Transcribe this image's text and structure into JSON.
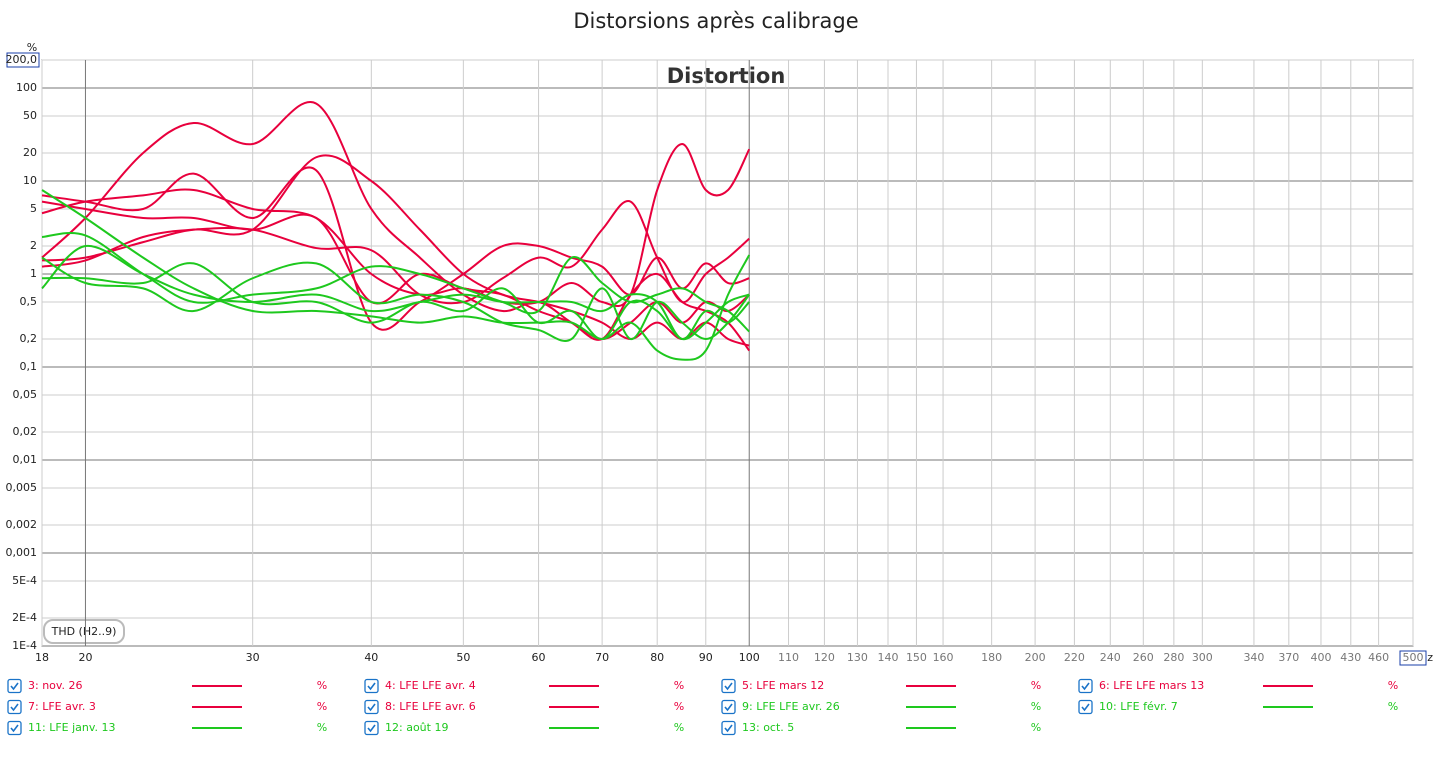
{
  "chart_data": {
    "type": "line",
    "title": "Distorsions après calibrage",
    "header": "Distortion",
    "annotation": "THD (H2..9)",
    "y_unit": "%",
    "x_unit": "Hz",
    "legend_unit": "%",
    "log_x": true,
    "log_y": true,
    "grid": true,
    "xlim": [
      18,
      500
    ],
    "ylim": [
      0.0001,
      200
    ],
    "xticks": [
      18,
      20,
      30,
      40,
      50,
      60,
      70,
      80,
      90,
      100,
      110,
      120,
      130,
      140,
      150,
      160,
      180,
      200,
      220,
      240,
      260,
      280,
      300,
      340,
      370,
      400,
      430,
      460,
      500
    ],
    "yticks": [
      {
        "value": 200,
        "label": "200,0"
      },
      100,
      50,
      20,
      10,
      5,
      2,
      1,
      {
        "value": 0.5,
        "label": "0,5"
      },
      {
        "value": 0.2,
        "label": "0,2"
      },
      {
        "value": 0.1,
        "label": "0,1"
      },
      {
        "value": 0.05,
        "label": "0,05"
      },
      {
        "value": 0.02,
        "label": "0,02"
      },
      {
        "value": 0.01,
        "label": "0,01"
      },
      {
        "value": 0.005,
        "label": "0,005"
      },
      {
        "value": 0.002,
        "label": "0,002"
      },
      {
        "value": 0.001,
        "label": "0,001"
      },
      {
        "value": 0.0005,
        "label": "5E-4"
      },
      {
        "value": 0.0002,
        "label": "2E-4"
      },
      {
        "value": 0.0001,
        "label": "1E-4"
      }
    ],
    "x": [
      18,
      20,
      23,
      26,
      30,
      35,
      40,
      45,
      50,
      55,
      60,
      65,
      70,
      75,
      80,
      85,
      90,
      95,
      100
    ],
    "series": [
      {
        "name": "3: nov. 26",
        "color": "#e8003d",
        "values": [
          1.5,
          4,
          20,
          42,
          25,
          68,
          5,
          1.5,
          0.6,
          0.4,
          0.5,
          0.3,
          0.2,
          0.6,
          1,
          0.5,
          0.4,
          0.3,
          0.15
        ]
      },
      {
        "name": "4: LFE LFE avr. 4",
        "color": "#e8003d",
        "values": [
          1.4,
          1.5,
          2.2,
          3,
          3,
          18,
          10,
          3,
          1,
          0.6,
          0.5,
          0.4,
          0.3,
          0.2,
          0.3,
          0.2,
          0.3,
          0.2,
          0.17
        ]
      },
      {
        "name": "5: LFE mars 12",
        "color": "#e8003d",
        "values": [
          4.5,
          6,
          7,
          8,
          5,
          4,
          1,
          0.6,
          0.7,
          0.5,
          0.5,
          0.8,
          0.5,
          0.6,
          8,
          25,
          8,
          8,
          22
        ]
      },
      {
        "name": "6: LFE LFE mars 13",
        "color": "#e8003d",
        "values": [
          7,
          6,
          5,
          12,
          4,
          13,
          0.3,
          0.5,
          1,
          2,
          2,
          1.5,
          1.2,
          0.6,
          1.5,
          0.7,
          1.3,
          0.8,
          0.9
        ]
      },
      {
        "name": "7: LFE avr. 3",
        "color": "#e8003d",
        "values": [
          1.2,
          1.4,
          2.5,
          3,
          3,
          1.9,
          1.8,
          0.6,
          0.5,
          0.9,
          1.5,
          1.2,
          3,
          6,
          1.5,
          0.5,
          1,
          1.5,
          2.4
        ]
      },
      {
        "name": "8: LFE LFE avr. 6",
        "color": "#e8003d",
        "values": [
          6,
          5,
          4,
          4,
          3,
          4,
          0.5,
          1,
          0.7,
          0.6,
          0.4,
          0.3,
          0.2,
          0.3,
          0.5,
          0.3,
          0.5,
          0.4,
          0.6
        ]
      },
      {
        "name": "9: LFE LFE avr. 26",
        "color": "#1ec81e",
        "values": [
          8,
          4,
          1.5,
          0.7,
          0.4,
          0.4,
          0.35,
          0.3,
          0.35,
          0.3,
          0.3,
          0.3,
          0.2,
          0.3,
          0.15,
          0.12,
          0.15,
          0.6,
          1.6
        ]
      },
      {
        "name": "10: LFE févr. 7",
        "color": "#1ec81e",
        "values": [
          2.5,
          2.6,
          1,
          0.5,
          0.6,
          0.7,
          1.2,
          1,
          0.7,
          0.5,
          0.4,
          1.5,
          0.8,
          0.5,
          0.6,
          0.7,
          0.5,
          0.4,
          0.24
        ]
      },
      {
        "name": "11: LFE janv. 13",
        "color": "#1ec81e",
        "values": [
          0.9,
          0.9,
          0.8,
          1.3,
          0.5,
          0.5,
          0.3,
          0.5,
          0.4,
          0.7,
          0.3,
          0.4,
          0.2,
          0.5,
          0.4,
          0.2,
          0.3,
          0.5,
          0.6
        ]
      },
      {
        "name": "12: août 19",
        "color": "#1ec81e",
        "values": [
          1.5,
          0.8,
          0.7,
          0.4,
          0.9,
          1.3,
          0.5,
          0.6,
          0.5,
          0.3,
          0.25,
          0.2,
          0.7,
          0.2,
          0.5,
          0.3,
          0.2,
          0.3,
          0.6
        ]
      },
      {
        "name": "13: oct. 5",
        "color": "#1ec81e",
        "values": [
          0.7,
          2,
          1,
          0.6,
          0.5,
          0.6,
          0.4,
          0.5,
          0.6,
          0.5,
          0.5,
          0.5,
          0.4,
          0.6,
          0.5,
          0.2,
          0.4,
          0.3,
          0.5
        ]
      }
    ]
  }
}
